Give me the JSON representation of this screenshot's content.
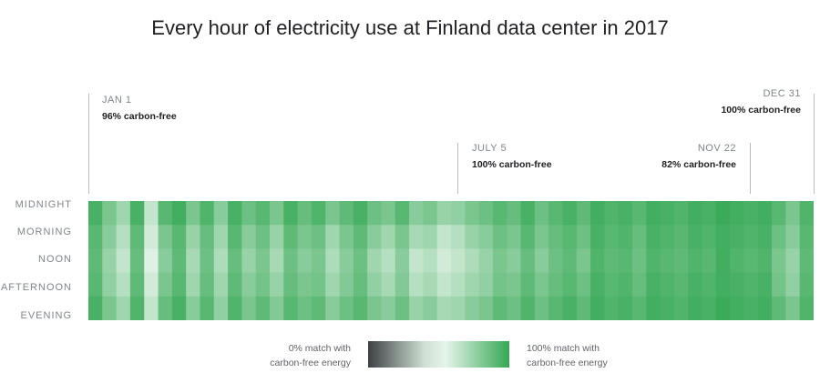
{
  "chart_data": {
    "type": "heatmap",
    "title": "Every hour of electricity use at Finland data center in 2017",
    "y_categories": [
      "MIDNIGHT",
      "MORNING",
      "NOON",
      "AFTERNOON",
      "EVENING"
    ],
    "x_range": [
      "JAN 1",
      "DEC 31"
    ],
    "x_unit": "week (approx.)",
    "values": [
      [
        0.97,
        0.9,
        0.85,
        0.97,
        0.8,
        0.95,
        0.98,
        0.9,
        0.96,
        0.88,
        0.97,
        0.92,
        0.95,
        0.9,
        0.97,
        0.93,
        0.96,
        0.9,
        0.94,
        0.97,
        0.92,
        0.9,
        0.95,
        0.88,
        0.9,
        0.86,
        0.87,
        0.9,
        0.92,
        0.95,
        0.93,
        0.97,
        0.92,
        0.95,
        0.97,
        0.94,
        0.98,
        0.96,
        0.97,
        0.95,
        0.98,
        0.97,
        0.96,
        0.98,
        0.97,
        0.99,
        0.98,
        0.97,
        0.98,
        0.95,
        0.9,
        0.96
      ],
      [
        0.95,
        0.88,
        0.82,
        0.94,
        0.78,
        0.9,
        0.95,
        0.86,
        0.93,
        0.85,
        0.95,
        0.88,
        0.92,
        0.86,
        0.94,
        0.9,
        0.92,
        0.85,
        0.9,
        0.94,
        0.88,
        0.85,
        0.9,
        0.84,
        0.85,
        0.8,
        0.82,
        0.86,
        0.88,
        0.92,
        0.9,
        0.95,
        0.9,
        0.93,
        0.95,
        0.92,
        0.97,
        0.95,
        0.96,
        0.93,
        0.97,
        0.96,
        0.95,
        0.97,
        0.96,
        0.98,
        0.97,
        0.96,
        0.97,
        0.92,
        0.88,
        0.95
      ],
      [
        0.94,
        0.86,
        0.8,
        0.93,
        0.76,
        0.88,
        0.94,
        0.84,
        0.92,
        0.83,
        0.93,
        0.86,
        0.9,
        0.84,
        0.92,
        0.88,
        0.9,
        0.83,
        0.88,
        0.92,
        0.85,
        0.82,
        0.88,
        0.8,
        0.82,
        0.78,
        0.8,
        0.83,
        0.86,
        0.9,
        0.88,
        0.93,
        0.88,
        0.92,
        0.94,
        0.9,
        0.96,
        0.94,
        0.95,
        0.92,
        0.96,
        0.95,
        0.94,
        0.96,
        0.95,
        0.98,
        0.96,
        0.95,
        0.96,
        0.9,
        0.86,
        0.94
      ],
      [
        0.95,
        0.87,
        0.82,
        0.94,
        0.78,
        0.9,
        0.95,
        0.85,
        0.93,
        0.85,
        0.94,
        0.88,
        0.91,
        0.86,
        0.93,
        0.9,
        0.91,
        0.85,
        0.89,
        0.93,
        0.87,
        0.84,
        0.89,
        0.82,
        0.84,
        0.8,
        0.82,
        0.85,
        0.87,
        0.91,
        0.9,
        0.94,
        0.9,
        0.93,
        0.95,
        0.92,
        0.97,
        0.95,
        0.96,
        0.93,
        0.97,
        0.96,
        0.95,
        0.97,
        0.96,
        0.98,
        0.97,
        0.96,
        0.97,
        0.91,
        0.87,
        0.95
      ],
      [
        0.97,
        0.9,
        0.85,
        0.96,
        0.8,
        0.93,
        0.97,
        0.88,
        0.95,
        0.87,
        0.96,
        0.9,
        0.94,
        0.89,
        0.95,
        0.92,
        0.94,
        0.88,
        0.92,
        0.95,
        0.9,
        0.88,
        0.92,
        0.86,
        0.88,
        0.84,
        0.85,
        0.88,
        0.9,
        0.94,
        0.92,
        0.96,
        0.92,
        0.95,
        0.97,
        0.94,
        0.98,
        0.96,
        0.97,
        0.95,
        0.98,
        0.97,
        0.96,
        0.98,
        0.97,
        0.99,
        0.98,
        0.97,
        0.98,
        0.94,
        0.9,
        0.96
      ]
    ],
    "color_scale": {
      "low": "#3c4043",
      "mid": "#e6f4ea",
      "high": "#34a853"
    },
    "annotations": [
      {
        "date": "JAN 1",
        "label": "96% carbon-free"
      },
      {
        "date": "JULY 5",
        "label": "100% carbon-free"
      },
      {
        "date": "NOV 22",
        "label": "82% carbon-free"
      },
      {
        "date": "DEC 31",
        "label": "100% carbon-free"
      }
    ],
    "legend": {
      "low": "0% match with carbon-free energy",
      "high": "100% match with carbon-free energy",
      "low_l1": "0% match with",
      "low_l2": "carbon-free energy",
      "high_l1": "100% match with",
      "high_l2": "carbon-free energy"
    }
  }
}
